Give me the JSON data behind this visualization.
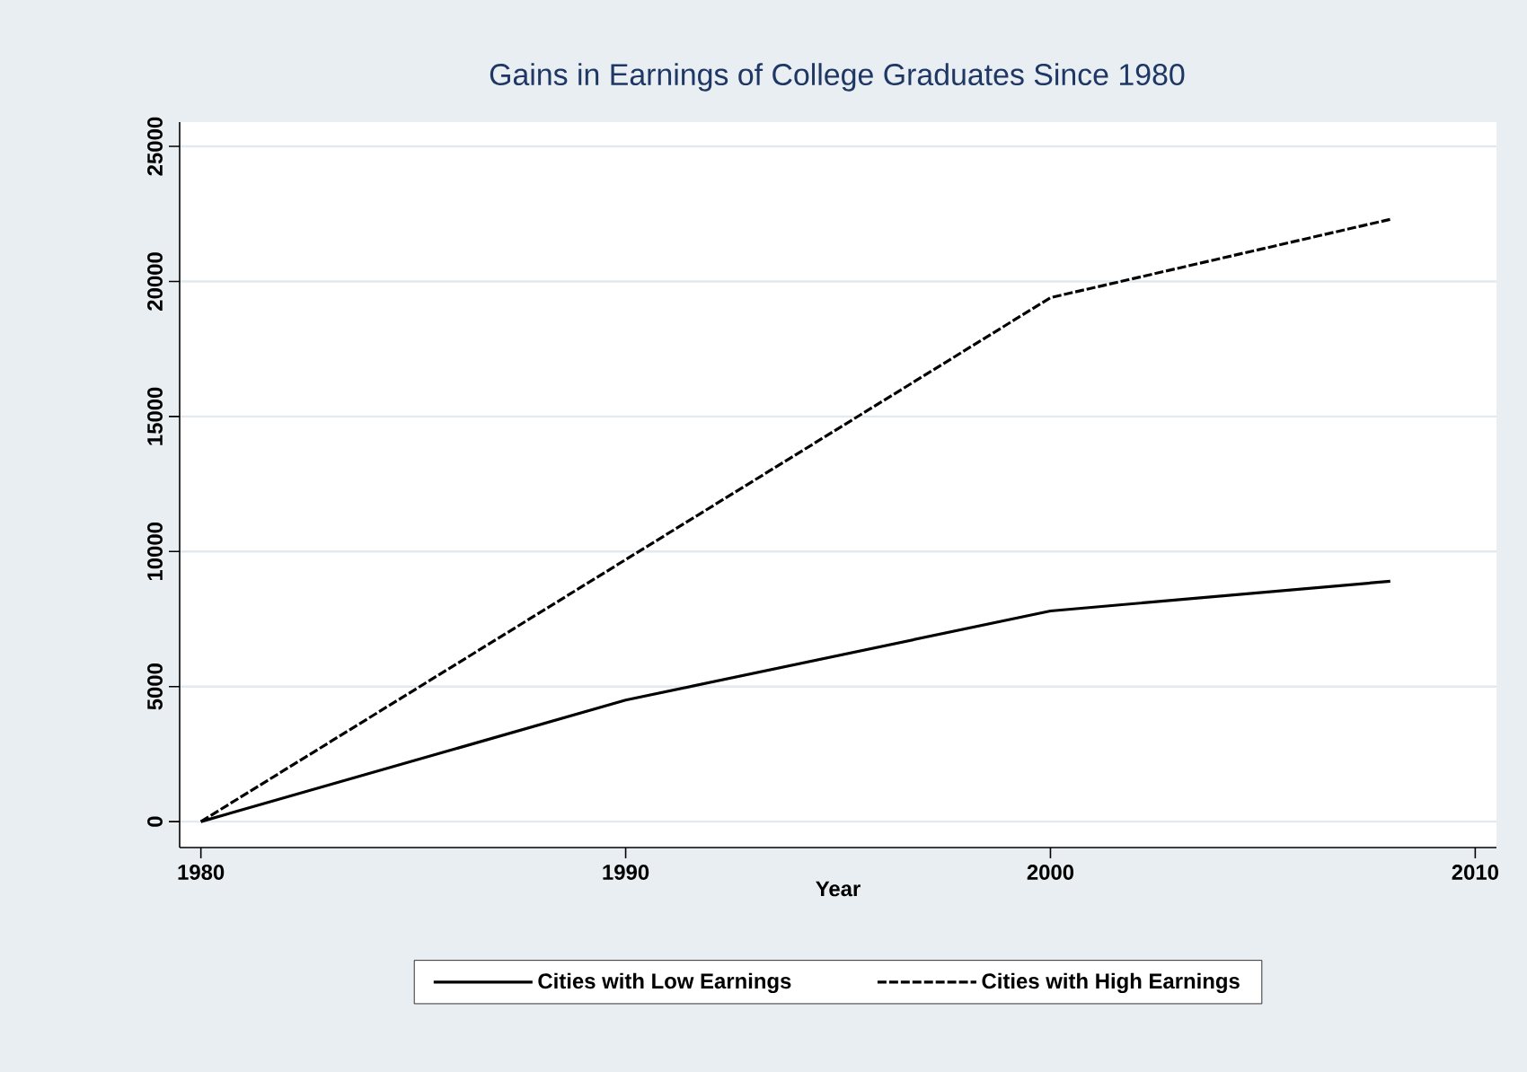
{
  "chart_data": {
    "type": "line",
    "title": "Gains in Earnings of College Graduates Since 1980",
    "xlabel": "Year",
    "x": [
      1980,
      1990,
      2000,
      2008
    ],
    "series": [
      {
        "name": "Cities with Low Earnings",
        "color": "#000000",
        "line_style": "solid",
        "values": [
          0,
          4500,
          7800,
          8900
        ]
      },
      {
        "name": "Cities with High Earnings",
        "color": "#000000",
        "line_style": "dashed",
        "values": [
          0,
          9700,
          19400,
          22300
        ]
      }
    ],
    "xlim": [
      1979.5,
      2010.5
    ],
    "ylim": [
      -960,
      25900
    ],
    "xticks": [
      1980,
      1990,
      2000,
      2010
    ],
    "yticks": [
      0,
      5000,
      10000,
      15000,
      20000,
      25000
    ],
    "grid": "y",
    "legend": "bottom",
    "marker": "none"
  }
}
